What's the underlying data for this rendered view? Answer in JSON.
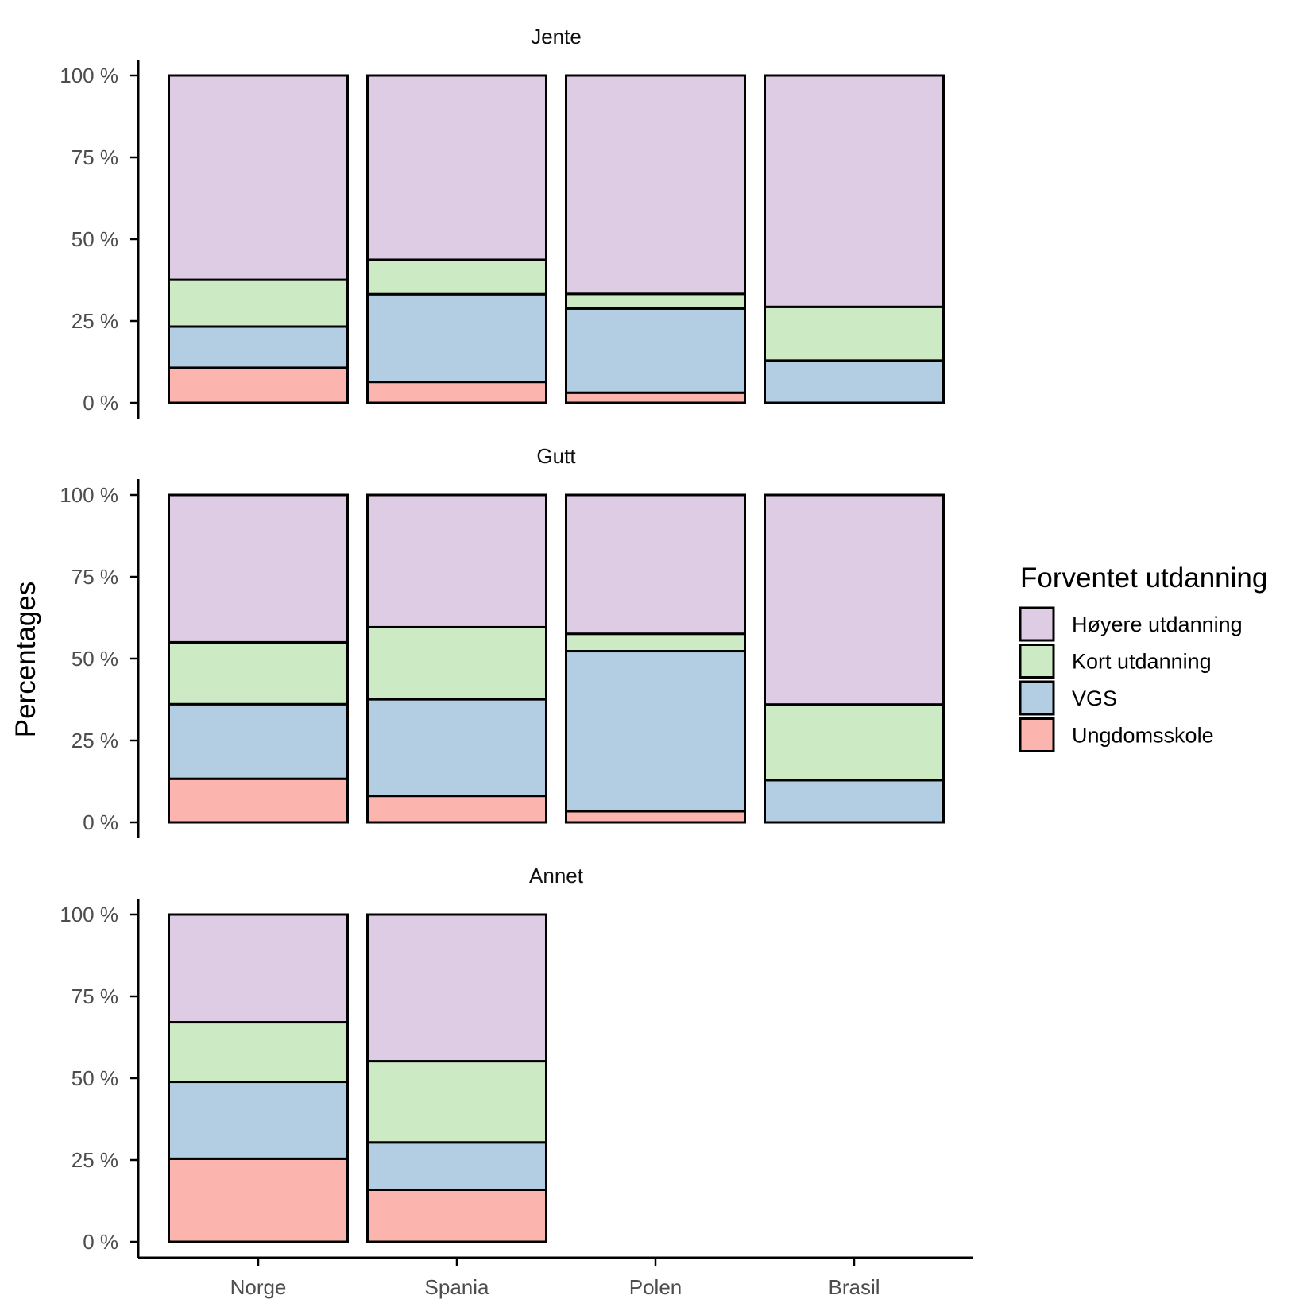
{
  "chart_data": {
    "type": "bar",
    "stacked": true,
    "percent": true,
    "ylabel": "Percentages",
    "xlabel": "",
    "ylim": [
      0,
      100
    ],
    "y_ticks": [
      "0 %",
      "25 %",
      "50 %",
      "75 %",
      "100 %"
    ],
    "categories": [
      "Norge",
      "Spania",
      "Polen",
      "Brasil"
    ],
    "legend": {
      "title": "Forventet utdanning",
      "position": "right",
      "items": [
        {
          "name": "Høyere utdanning",
          "color": "#decbe4"
        },
        {
          "name": "Kort utdanning",
          "color": "#ccebc5"
        },
        {
          "name": "VGS",
          "color": "#b3cde3"
        },
        {
          "name": "Ungdomsskole",
          "color": "#fbb4ae"
        }
      ]
    },
    "stack_order_bottom_to_top": [
      "Ungdomsskole",
      "VGS",
      "Kort utdanning",
      "Høyere utdanning"
    ],
    "facets": [
      {
        "title": "Jente",
        "bars": [
          {
            "category": "Norge",
            "Ungdomsskole": 10.7,
            "VGS": 12.6,
            "Kort utdanning": 14.3,
            "Høyere utdanning": 62.4
          },
          {
            "category": "Spania",
            "Ungdomsskole": 6.4,
            "VGS": 26.8,
            "Kort utdanning": 10.5,
            "Høyere utdanning": 56.3
          },
          {
            "category": "Polen",
            "Ungdomsskole": 3.1,
            "VGS": 25.7,
            "Kort utdanning": 4.5,
            "Høyere utdanning": 66.7
          },
          {
            "category": "Brasil",
            "Ungdomsskole": 0.0,
            "VGS": 12.9,
            "Kort utdanning": 16.4,
            "Høyere utdanning": 70.7
          }
        ]
      },
      {
        "title": "Gutt",
        "bars": [
          {
            "category": "Norge",
            "Ungdomsskole": 13.3,
            "VGS": 22.8,
            "Kort utdanning": 18.9,
            "Høyere utdanning": 45.0
          },
          {
            "category": "Spania",
            "Ungdomsskole": 8.1,
            "VGS": 29.5,
            "Kort utdanning": 22.0,
            "Høyere utdanning": 40.4
          },
          {
            "category": "Polen",
            "Ungdomsskole": 3.4,
            "VGS": 48.9,
            "Kort utdanning": 5.3,
            "Høyere utdanning": 42.4
          },
          {
            "category": "Brasil",
            "Ungdomsskole": 0.0,
            "VGS": 12.9,
            "Kort utdanning": 23.1,
            "Høyere utdanning": 64.0
          }
        ]
      },
      {
        "title": "Annet",
        "bars": [
          {
            "category": "Norge",
            "Ungdomsskole": 25.4,
            "VGS": 23.5,
            "Kort utdanning": 18.2,
            "Høyere utdanning": 32.9
          },
          {
            "category": "Spania",
            "Ungdomsskole": 15.9,
            "VGS": 14.5,
            "Kort utdanning": 24.8,
            "Høyere utdanning": 44.8
          }
        ]
      }
    ]
  }
}
